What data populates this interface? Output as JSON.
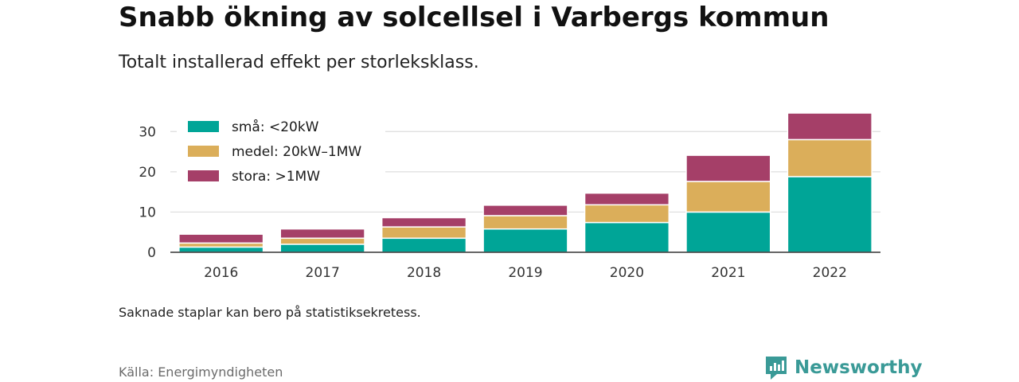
{
  "header": {
    "title": "Snabb ökning av solcellsel i Varbergs kommun",
    "subtitle": "Totalt installerad effekt per storleksklass."
  },
  "footer": {
    "note": "Saknade staplar kan bero på statistiksekretess.",
    "source": "Källa: Energimyndigheten",
    "brand": "Newsworthy",
    "brand_icon": "newsworthy-logo-icon"
  },
  "colors": {
    "small": "#00a597",
    "medium": "#dbae5a",
    "large": "#a53f68",
    "brand": "#3a9a97",
    "grid": "#dddddd",
    "axis": "#333333"
  },
  "chart_data": {
    "type": "bar",
    "stacked": true,
    "categories": [
      "2016",
      "2017",
      "2018",
      "2019",
      "2020",
      "2021",
      "2022"
    ],
    "series": [
      {
        "name": "små: <20kW",
        "color": "#00a597",
        "values": [
          1.3,
          2.0,
          3.5,
          5.8,
          7.4,
          10.0,
          18.8
        ]
      },
      {
        "name": "medel: 20kW–1MW",
        "color": "#dbae5a",
        "values": [
          1.0,
          1.5,
          2.8,
          3.3,
          4.4,
          7.6,
          9.2
        ]
      },
      {
        "name": "stora: >1MW",
        "color": "#a53f68",
        "values": [
          2.2,
          2.3,
          2.3,
          2.6,
          2.9,
          6.5,
          6.6
        ]
      }
    ],
    "yticks": [
      0,
      10,
      20,
      30
    ],
    "ylim": [
      0,
      35
    ],
    "xlabel": "",
    "ylabel": "",
    "grid": true,
    "legend": "top-left"
  }
}
